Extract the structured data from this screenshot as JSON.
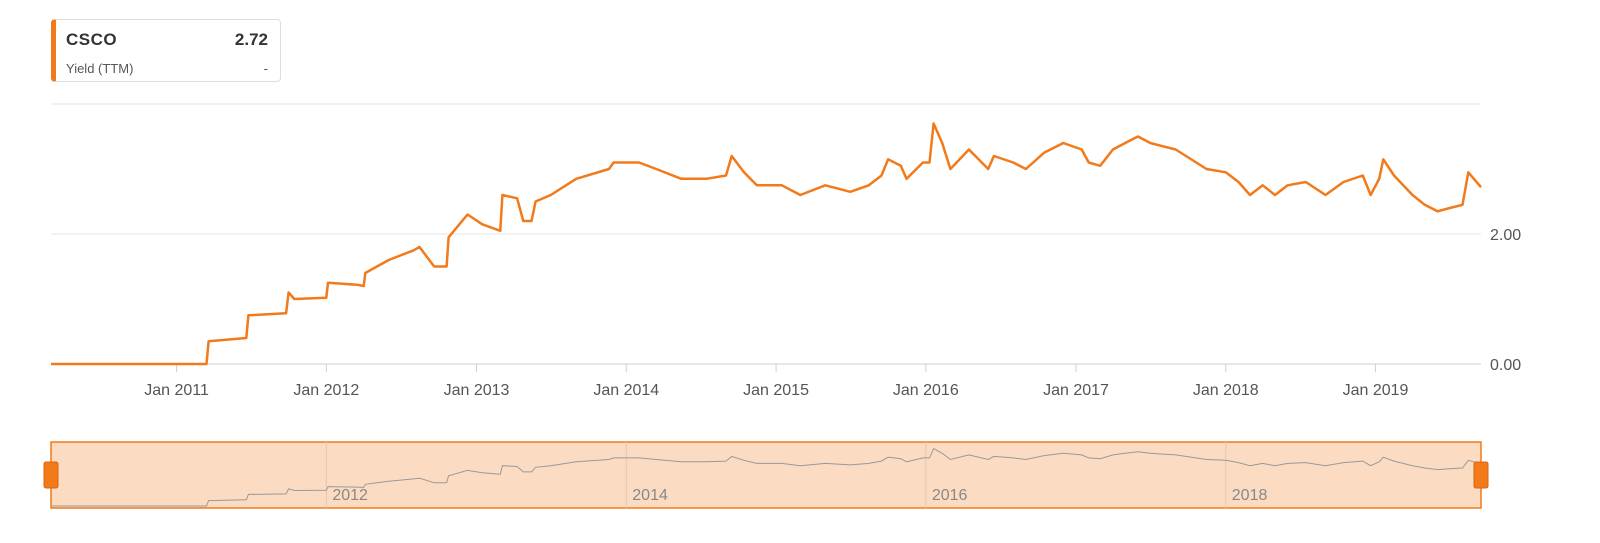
{
  "legend": {
    "symbol": "CSCO",
    "value": "2.72",
    "metric": "Yield (TTM)",
    "metric_value": "-"
  },
  "colors": {
    "series": "#f27a1a",
    "grid": "#e6e6e6",
    "navigator_fill": "#fbdcc3",
    "navigator_line": "#999999"
  },
  "chart_data": {
    "type": "line",
    "title": "",
    "xlabel": "",
    "ylabel": "",
    "x_tick_labels": [
      "Jan 2011",
      "Jan 2012",
      "Jan 2013",
      "Jan 2014",
      "Jan 2015",
      "Jan 2016",
      "Jan 2017",
      "Jan 2018",
      "Jan 2019"
    ],
    "y_tick_labels": [
      "0.00",
      "2.00"
    ],
    "ylim": [
      0,
      4
    ],
    "xlim": [
      "2010-03-01",
      "2019-09-15"
    ],
    "grid": true,
    "series": [
      {
        "name": "CSCO",
        "points": [
          [
            "2010-03-01",
            0.0
          ],
          [
            "2011-03-15",
            0.0
          ],
          [
            "2011-03-20",
            0.35
          ],
          [
            "2011-06-20",
            0.4
          ],
          [
            "2011-06-25",
            0.75
          ],
          [
            "2011-09-25",
            0.78
          ],
          [
            "2011-10-01",
            1.1
          ],
          [
            "2011-10-15",
            1.0
          ],
          [
            "2012-01-01",
            1.02
          ],
          [
            "2012-01-05",
            1.25
          ],
          [
            "2012-03-15",
            1.22
          ],
          [
            "2012-04-01",
            1.2
          ],
          [
            "2012-04-05",
            1.4
          ],
          [
            "2012-06-01",
            1.6
          ],
          [
            "2012-08-01",
            1.75
          ],
          [
            "2012-08-15",
            1.8
          ],
          [
            "2012-09-20",
            1.5
          ],
          [
            "2012-10-20",
            1.5
          ],
          [
            "2012-10-25",
            1.95
          ],
          [
            "2012-12-10",
            2.3
          ],
          [
            "2013-01-15",
            2.15
          ],
          [
            "2013-02-28",
            2.05
          ],
          [
            "2013-03-05",
            2.6
          ],
          [
            "2013-04-10",
            2.55
          ],
          [
            "2013-04-25",
            2.2
          ],
          [
            "2013-05-15",
            2.2
          ],
          [
            "2013-05-25",
            2.5
          ],
          [
            "2013-07-01",
            2.6
          ],
          [
            "2013-09-01",
            2.85
          ],
          [
            "2013-11-20",
            3.0
          ],
          [
            "2013-12-01",
            3.1
          ],
          [
            "2014-02-01",
            3.1
          ],
          [
            "2014-03-15",
            3.0
          ],
          [
            "2014-05-15",
            2.85
          ],
          [
            "2014-07-15",
            2.85
          ],
          [
            "2014-09-01",
            2.9
          ],
          [
            "2014-09-15",
            3.2
          ],
          [
            "2014-10-15",
            2.95
          ],
          [
            "2014-11-15",
            2.75
          ],
          [
            "2015-01-15",
            2.75
          ],
          [
            "2015-03-01",
            2.6
          ],
          [
            "2015-05-01",
            2.75
          ],
          [
            "2015-07-01",
            2.65
          ],
          [
            "2015-08-15",
            2.75
          ],
          [
            "2015-09-15",
            2.9
          ],
          [
            "2015-10-01",
            3.15
          ],
          [
            "2015-11-01",
            3.05
          ],
          [
            "2015-11-15",
            2.85
          ],
          [
            "2015-12-25",
            3.1
          ],
          [
            "2016-01-10",
            3.1
          ],
          [
            "2016-01-20",
            3.7
          ],
          [
            "2016-02-10",
            3.4
          ],
          [
            "2016-03-01",
            3.0
          ],
          [
            "2016-04-15",
            3.3
          ],
          [
            "2016-06-01",
            3.0
          ],
          [
            "2016-06-15",
            3.2
          ],
          [
            "2016-08-01",
            3.1
          ],
          [
            "2016-09-01",
            3.0
          ],
          [
            "2016-10-15",
            3.25
          ],
          [
            "2016-12-01",
            3.4
          ],
          [
            "2017-01-15",
            3.3
          ],
          [
            "2017-02-01",
            3.1
          ],
          [
            "2017-03-01",
            3.05
          ],
          [
            "2017-04-01",
            3.3
          ],
          [
            "2017-05-01",
            3.4
          ],
          [
            "2017-06-01",
            3.5
          ],
          [
            "2017-07-01",
            3.4
          ],
          [
            "2017-08-01",
            3.35
          ],
          [
            "2017-09-01",
            3.3
          ],
          [
            "2017-11-15",
            3.0
          ],
          [
            "2018-01-01",
            2.95
          ],
          [
            "2018-02-01",
            2.8
          ],
          [
            "2018-03-01",
            2.6
          ],
          [
            "2018-04-01",
            2.75
          ],
          [
            "2018-05-01",
            2.6
          ],
          [
            "2018-06-01",
            2.75
          ],
          [
            "2018-07-15",
            2.8
          ],
          [
            "2018-09-01",
            2.6
          ],
          [
            "2018-10-15",
            2.8
          ],
          [
            "2018-12-01",
            2.9
          ],
          [
            "2018-12-20",
            2.6
          ],
          [
            "2019-01-10",
            2.85
          ],
          [
            "2019-01-20",
            3.15
          ],
          [
            "2019-02-15",
            2.9
          ],
          [
            "2019-04-01",
            2.6
          ],
          [
            "2019-05-01",
            2.45
          ],
          [
            "2019-06-01",
            2.35
          ],
          [
            "2019-07-01",
            2.4
          ],
          [
            "2019-08-01",
            2.45
          ],
          [
            "2019-08-15",
            2.95
          ],
          [
            "2019-09-15",
            2.72
          ]
        ]
      }
    ],
    "navigator": {
      "x_tick_labels": [
        "2012",
        "2014",
        "2016",
        "2018"
      ]
    }
  }
}
